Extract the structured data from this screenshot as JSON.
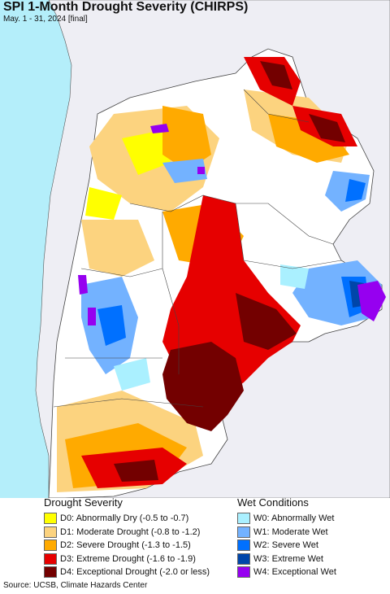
{
  "header": {
    "title": "SPI 1-Month Drought Severity (CHIRPS)",
    "subtitle": "May. 1 - 31, 2024 [final]"
  },
  "map": {
    "ocean_color": "#b4eefa",
    "land_outside_color": "#eeeef4"
  },
  "legend": {
    "drought": {
      "title": "Drought Severity",
      "items": [
        {
          "label": "D0: Abnormally Dry (-0.5 to -0.7)",
          "color": "#ffff00"
        },
        {
          "label": "D1: Moderate Drought (-0.8 to -1.2)",
          "color": "#fcd37f"
        },
        {
          "label": "D2: Severe Drought (-1.3 to -1.5)",
          "color": "#ffaa00"
        },
        {
          "label": "D3: Extreme Drought (-1.6 to -1.9)",
          "color": "#e60000"
        },
        {
          "label": "D4: Exceptional Drought (-2.0 or less)",
          "color": "#730000"
        }
      ]
    },
    "wet": {
      "title": "Wet Conditions",
      "items": [
        {
          "label": "W0: Abnormally Wet",
          "color": "#aaf0ff"
        },
        {
          "label": "W1: Moderate Wet",
          "color": "#73b2ff"
        },
        {
          "label": "W2: Severe Wet",
          "color": "#0070ff"
        },
        {
          "label": "W3: Extreme Wet",
          "color": "#0046aa"
        },
        {
          "label": "W4: Exceptional Wet",
          "color": "#9600f0"
        }
      ]
    }
  },
  "footer": {
    "source": "Source: UCSB, Climate Hazards Center"
  }
}
